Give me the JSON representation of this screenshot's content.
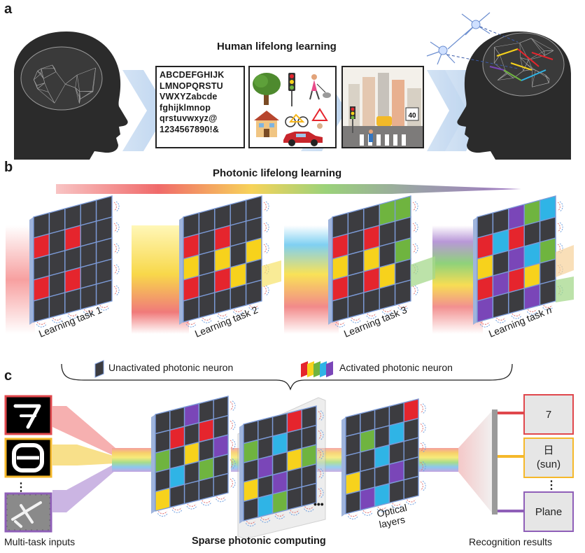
{
  "panels": {
    "a": "a",
    "b": "b",
    "c": "c"
  },
  "panel_a": {
    "title": "Human lifelong learning",
    "alphabet": "ABCDEFGHIJK\nLMNOPQRSTU\nVWXYZabcde\nfghijklmnop\nqrstuvwxyz@\n1234567890!&",
    "speed_sign": "40"
  },
  "panel_b": {
    "title": "Photonic lifelong learning",
    "tasks": [
      {
        "label": "Learning task 1"
      },
      {
        "label": "Learning task 2"
      },
      {
        "label": "Learning task 3"
      },
      {
        "label": "Learning task ",
        "italic_suffix": "n"
      }
    ],
    "legend": {
      "unactivated": "Unactivated photonic neuron",
      "activated": "Activated photonic neuron"
    }
  },
  "panel_c": {
    "inputs_label": "Multi-task inputs",
    "center_label": "Sparse photonic computing",
    "ellipsis": "•••",
    "optical_layers": "Optical\nlayers",
    "results_label": "Recognition results",
    "results": [
      {
        "line1": "7",
        "line2": "",
        "color": "#e0474c"
      },
      {
        "line1": "日",
        "line2": "(sun)",
        "color": "#f5b82a"
      },
      {
        "line1": "Plane",
        "line2": "",
        "color": "#8f5fb8"
      }
    ],
    "vdots": "⋮"
  },
  "colors": {
    "red": "#e5252d",
    "yellow": "#f7d21c",
    "green": "#6fb43f",
    "cyan": "#2fb4e6",
    "purple": "#7a46b8",
    "dark": "#3c3c40",
    "grid": "#7c9bd8"
  }
}
